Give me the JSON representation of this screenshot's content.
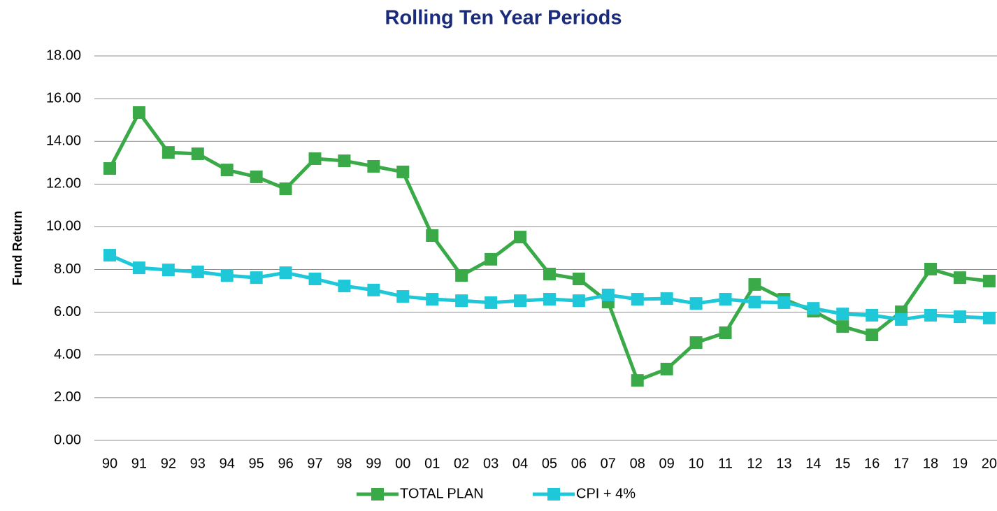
{
  "chart_data": {
    "type": "line",
    "title": "Rolling Ten Year Periods",
    "y_label": "Fund Return",
    "categories": [
      "90",
      "91",
      "92",
      "93",
      "94",
      "95",
      "96",
      "97",
      "98",
      "99",
      "00",
      "01",
      "02",
      "03",
      "04",
      "05",
      "06",
      "07",
      "08",
      "09",
      "10",
      "11",
      "12",
      "13",
      "14",
      "15",
      "16",
      "17",
      "18",
      "19",
      "20"
    ],
    "series": [
      {
        "name": "TOTAL PLAN",
        "color": "#3aaa48",
        "values": [
          12.73,
          15.35,
          13.48,
          13.42,
          12.66,
          12.34,
          11.78,
          13.19,
          13.09,
          12.83,
          12.57,
          9.59,
          7.72,
          8.48,
          9.52,
          7.79,
          7.56,
          6.48,
          2.81,
          3.34,
          4.58,
          5.04,
          7.3,
          6.61,
          6.05,
          5.33,
          4.94,
          6.02,
          8.02,
          7.62,
          7.46
        ]
      },
      {
        "name": "CPI + 4%",
        "color": "#1ec8d8",
        "values": [
          8.67,
          8.08,
          7.98,
          7.89,
          7.72,
          7.62,
          7.85,
          7.56,
          7.23,
          7.04,
          6.74,
          6.61,
          6.54,
          6.45,
          6.54,
          6.61,
          6.54,
          6.81,
          6.61,
          6.64,
          6.41,
          6.61,
          6.48,
          6.45,
          6.18,
          5.92,
          5.86,
          5.66,
          5.86,
          5.79,
          5.73
        ]
      }
    ],
    "ylim": [
      0,
      18
    ],
    "yticks": [
      {
        "value": 0,
        "label": "0.00"
      },
      {
        "value": 2,
        "label": "2.00"
      },
      {
        "value": 4,
        "label": "4.00"
      },
      {
        "value": 6,
        "label": "6.00"
      },
      {
        "value": 8,
        "label": "8.00"
      },
      {
        "value": 10,
        "label": "10.00"
      },
      {
        "value": 12,
        "label": "12.00"
      },
      {
        "value": 14,
        "label": "14.00"
      },
      {
        "value": 16,
        "label": "16.00"
      },
      {
        "value": 18,
        "label": "18.00"
      }
    ],
    "grid": true,
    "legend": "bottom"
  }
}
